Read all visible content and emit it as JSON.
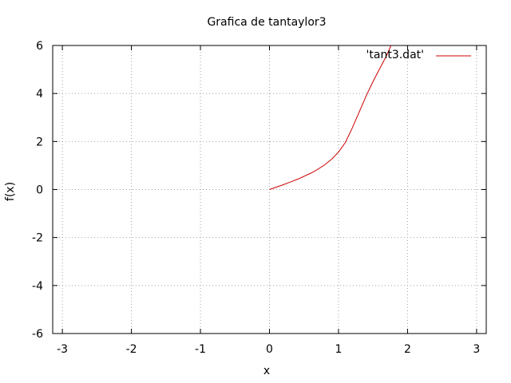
{
  "chart_data": {
    "type": "line",
    "title": "Grafica de tantaylor3",
    "xlabel": "x",
    "ylabel": "f(x)",
    "xlim": [
      -3.14,
      3.14
    ],
    "ylim": [
      -6,
      6
    ],
    "xticks": [
      -3,
      -2,
      -1,
      0,
      1,
      2,
      3
    ],
    "yticks": [
      -6,
      -4,
      -2,
      0,
      2,
      4,
      6
    ],
    "grid": true,
    "legend_position": "top-right",
    "series": [
      {
        "name": "'tant3.dat'",
        "color": "#cc0000",
        "x": [
          0,
          0.1,
          0.2,
          0.3,
          0.4,
          0.5,
          0.6,
          0.7,
          0.8,
          0.9,
          1.0,
          1.1,
          1.2,
          1.3,
          1.4,
          1.5,
          1.6,
          1.7,
          1.76
        ],
        "y": [
          0,
          0.1,
          0.2,
          0.31,
          0.42,
          0.55,
          0.68,
          0.84,
          1.03,
          1.26,
          1.56,
          1.96,
          2.57,
          3.23,
          3.9,
          4.5,
          5.05,
          5.6,
          6.0
        ]
      }
    ]
  }
}
